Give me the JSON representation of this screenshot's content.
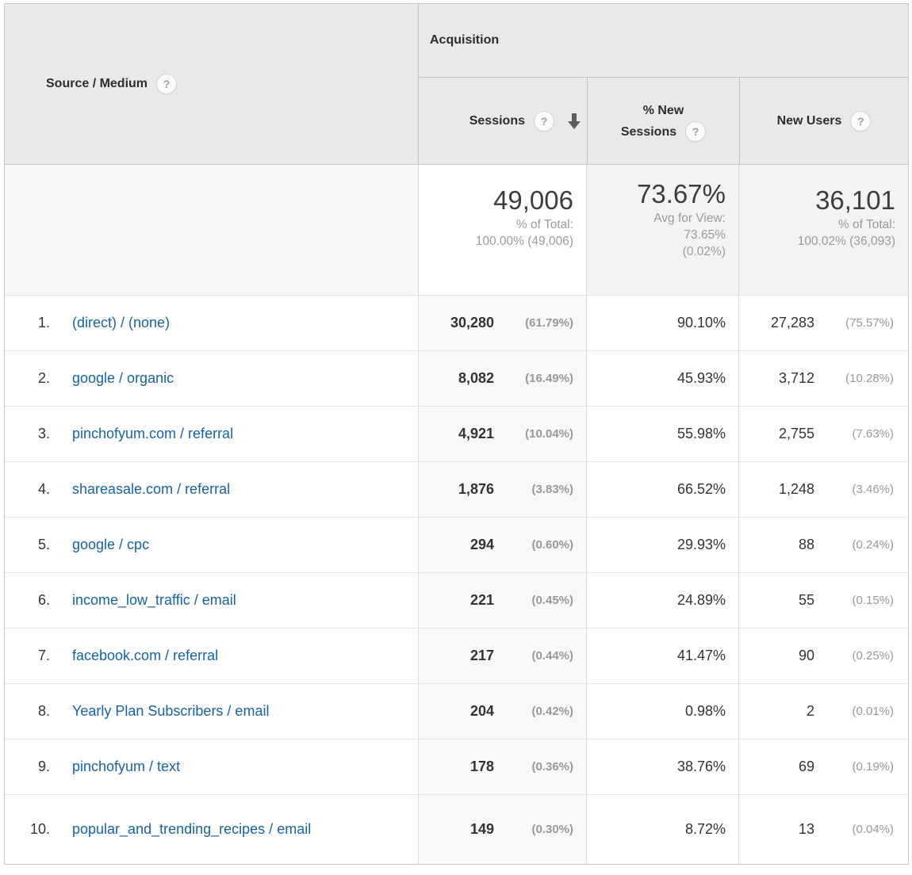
{
  "header": {
    "dimension_label": "Source / Medium",
    "group_label": "Acquisition",
    "sessions_label": "Sessions",
    "new_sessions_label_line1": "% New",
    "new_sessions_label_line2": "Sessions",
    "new_users_label": "New Users",
    "help_glyph": "?"
  },
  "summary": {
    "sessions_value": "49,006",
    "sessions_sub1": "% of Total:",
    "sessions_sub2": "100.00% (49,006)",
    "new_sessions_value": "73.67%",
    "new_sessions_sub1": "Avg for View:",
    "new_sessions_sub2": "73.65%",
    "new_sessions_sub3": "(0.02%)",
    "new_users_value": "36,101",
    "new_users_sub1": "% of Total:",
    "new_users_sub2": "100.02% (36,093)"
  },
  "rows": [
    {
      "rank": "1.",
      "source": "(direct) / (none)",
      "sessions": "30,280",
      "sessions_pct": "(61.79%)",
      "new_sessions_pct": "90.10%",
      "new_users": "27,283",
      "new_users_pct": "(75.57%)"
    },
    {
      "rank": "2.",
      "source": "google / organic",
      "sessions": "8,082",
      "sessions_pct": "(16.49%)",
      "new_sessions_pct": "45.93%",
      "new_users": "3,712",
      "new_users_pct": "(10.28%)"
    },
    {
      "rank": "3.",
      "source": "pinchofyum.com / referral",
      "sessions": "4,921",
      "sessions_pct": "(10.04%)",
      "new_sessions_pct": "55.98%",
      "new_users": "2,755",
      "new_users_pct": "(7.63%)"
    },
    {
      "rank": "4.",
      "source": "shareasale.com / referral",
      "sessions": "1,876",
      "sessions_pct": "(3.83%)",
      "new_sessions_pct": "66.52%",
      "new_users": "1,248",
      "new_users_pct": "(3.46%)"
    },
    {
      "rank": "5.",
      "source": "google / cpc",
      "sessions": "294",
      "sessions_pct": "(0.60%)",
      "new_sessions_pct": "29.93%",
      "new_users": "88",
      "new_users_pct": "(0.24%)"
    },
    {
      "rank": "6.",
      "source": "income_low_traffic / email",
      "sessions": "221",
      "sessions_pct": "(0.45%)",
      "new_sessions_pct": "24.89%",
      "new_users": "55",
      "new_users_pct": "(0.15%)"
    },
    {
      "rank": "7.",
      "source": "facebook.com / referral",
      "sessions": "217",
      "sessions_pct": "(0.44%)",
      "new_sessions_pct": "41.47%",
      "new_users": "90",
      "new_users_pct": "(0.25%)"
    },
    {
      "rank": "8.",
      "source": "Yearly Plan Subscribers / email",
      "sessions": "204",
      "sessions_pct": "(0.42%)",
      "new_sessions_pct": "0.98%",
      "new_users": "2",
      "new_users_pct": "(0.01%)"
    },
    {
      "rank": "9.",
      "source": "pinchofyum / text",
      "sessions": "178",
      "sessions_pct": "(0.36%)",
      "new_sessions_pct": "38.76%",
      "new_users": "69",
      "new_users_pct": "(0.19%)"
    },
    {
      "rank": "10.",
      "source": "popular_and_trending_recipes / email",
      "sessions": "149",
      "sessions_pct": "(0.30%)",
      "new_sessions_pct": "8.72%",
      "new_users": "13",
      "new_users_pct": "(0.04%)"
    }
  ],
  "colors": {
    "link": "#1563a5",
    "header_bg": "#e9e9e9",
    "border_strong": "#c9c9c9",
    "sorted_column_bg": "#f8f8f8",
    "summary_gray_bg": "#f3f3f3",
    "text_dark": "#333333",
    "muted_gray": "#999999"
  }
}
